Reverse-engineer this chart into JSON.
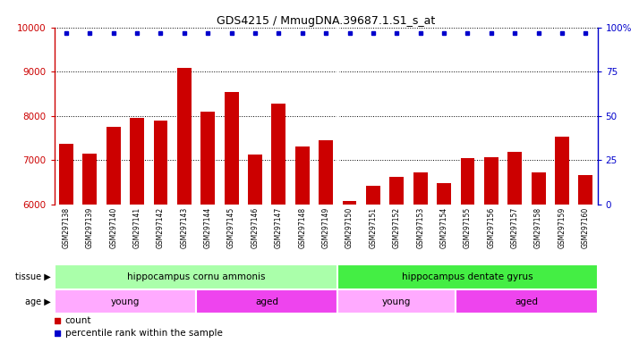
{
  "title": "GDS4215 / MmugDNA.39687.1.S1_s_at",
  "samples": [
    "GSM297138",
    "GSM297139",
    "GSM297140",
    "GSM297141",
    "GSM297142",
    "GSM297143",
    "GSM297144",
    "GSM297145",
    "GSM297146",
    "GSM297147",
    "GSM297148",
    "GSM297149",
    "GSM297150",
    "GSM297151",
    "GSM297152",
    "GSM297153",
    "GSM297154",
    "GSM297155",
    "GSM297156",
    "GSM297157",
    "GSM297158",
    "GSM297159",
    "GSM297160"
  ],
  "counts": [
    7380,
    7150,
    7750,
    7950,
    7900,
    9080,
    8100,
    8550,
    7130,
    8280,
    7310,
    7450,
    6080,
    6430,
    6620,
    6720,
    6490,
    7050,
    7060,
    7190,
    6730,
    7540,
    6660
  ],
  "bar_color": "#cc0000",
  "dot_color": "#0000cc",
  "ylim_left": [
    6000,
    10000
  ],
  "ylim_right": [
    0,
    100
  ],
  "yticks_left": [
    6000,
    7000,
    8000,
    9000,
    10000
  ],
  "yticks_right": [
    0,
    25,
    50,
    75,
    100
  ],
  "tissue_groups": [
    {
      "label": "hippocampus cornu ammonis",
      "start": 0,
      "end": 12,
      "color": "#aaffaa"
    },
    {
      "label": "hippocampus dentate gyrus",
      "start": 12,
      "end": 23,
      "color": "#44ee44"
    }
  ],
  "age_groups": [
    {
      "label": "young",
      "start": 0,
      "end": 6,
      "color": "#ffaaff"
    },
    {
      "label": "aged",
      "start": 6,
      "end": 12,
      "color": "#ee44ee"
    },
    {
      "label": "young",
      "start": 12,
      "end": 17,
      "color": "#ffaaff"
    },
    {
      "label": "aged",
      "start": 17,
      "end": 23,
      "color": "#ee44ee"
    }
  ],
  "tissue_label": "tissue",
  "age_label": "age",
  "legend_count_label": "count",
  "legend_pct_label": "percentile rank within the sample",
  "plot_bg_color": "#ffffff",
  "grid_color": "#000000",
  "right_axis_color": "#0000cc",
  "left_axis_color": "#cc0000",
  "xtick_bg_color": "#cccccc",
  "dot_percentile": 97,
  "bar_width": 0.6,
  "gap_positions": [
    11.5
  ]
}
